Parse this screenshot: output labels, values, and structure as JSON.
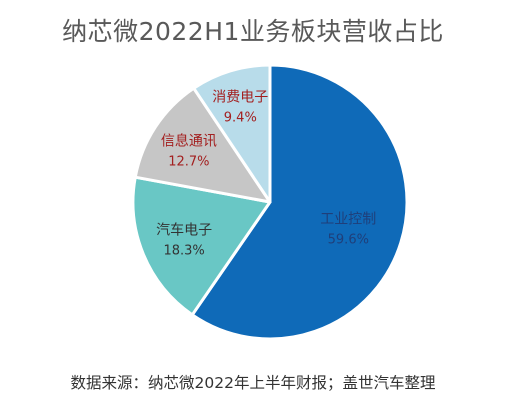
{
  "chart_data": {
    "type": "pie",
    "title": "纳芯微2022H1业务板块营收占比",
    "slices": [
      {
        "label": "工业控制",
        "value": 59.6,
        "value_label": "59.6%",
        "color": "#0f6ab8",
        "text_color": "#1f3f7a"
      },
      {
        "label": "汽车电子",
        "value": 18.3,
        "value_label": "18.3%",
        "color": "#69c7c5",
        "text_color": "#333333"
      },
      {
        "label": "信息通讯",
        "value": 12.7,
        "value_label": "12.7%",
        "color": "#c6c6c6",
        "text_color": "#a31f1f"
      },
      {
        "label": "消费电子",
        "value": 9.4,
        "value_label": "9.4%",
        "color": "#b8dcea",
        "text_color": "#a31f1f"
      }
    ],
    "start_angle": "top",
    "direction": "clockwise"
  },
  "source": "数据来源：纳芯微2022年上半年财报；盖世汽车整理"
}
